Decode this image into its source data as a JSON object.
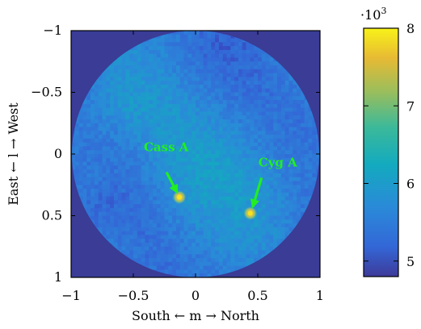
{
  "chart_data": {
    "type": "heatmap",
    "title": "",
    "xlabel": "South ← m → North",
    "ylabel": "East ← l → West",
    "xlim": [
      -1,
      1
    ],
    "ylim": [
      1,
      -1
    ],
    "y_axis_inverted": true,
    "x_ticks": [
      "−1",
      "−0.5",
      "0",
      "0.5",
      "1"
    ],
    "x_tick_values": [
      -1,
      -0.5,
      0,
      0.5,
      1
    ],
    "y_ticks": [
      "−1",
      "−0.5",
      "0",
      "0.5",
      "1"
    ],
    "y_tick_values": [
      -1,
      -0.5,
      0,
      0.5,
      1
    ],
    "field_of_view": "circle of radius 1 centred at (0, 0)",
    "colorbar": {
      "colormap": "parula",
      "range": [
        4.8,
        8.0
      ],
      "multiplier": "·10",
      "multiplier_exponent": "3",
      "ticks": [
        "5",
        "6",
        "7",
        "8"
      ],
      "tick_values": [
        5,
        6,
        7,
        8
      ]
    },
    "sources": [
      {
        "label": "Cass A",
        "m": -0.13,
        "l": 0.35,
        "intensity": 7.9
      },
      {
        "label": "Cyg A",
        "m": 0.44,
        "l": 0.48,
        "intensity": 7.9
      }
    ],
    "annotation_color": "#22ee22",
    "background_color": "#3a3c96"
  }
}
